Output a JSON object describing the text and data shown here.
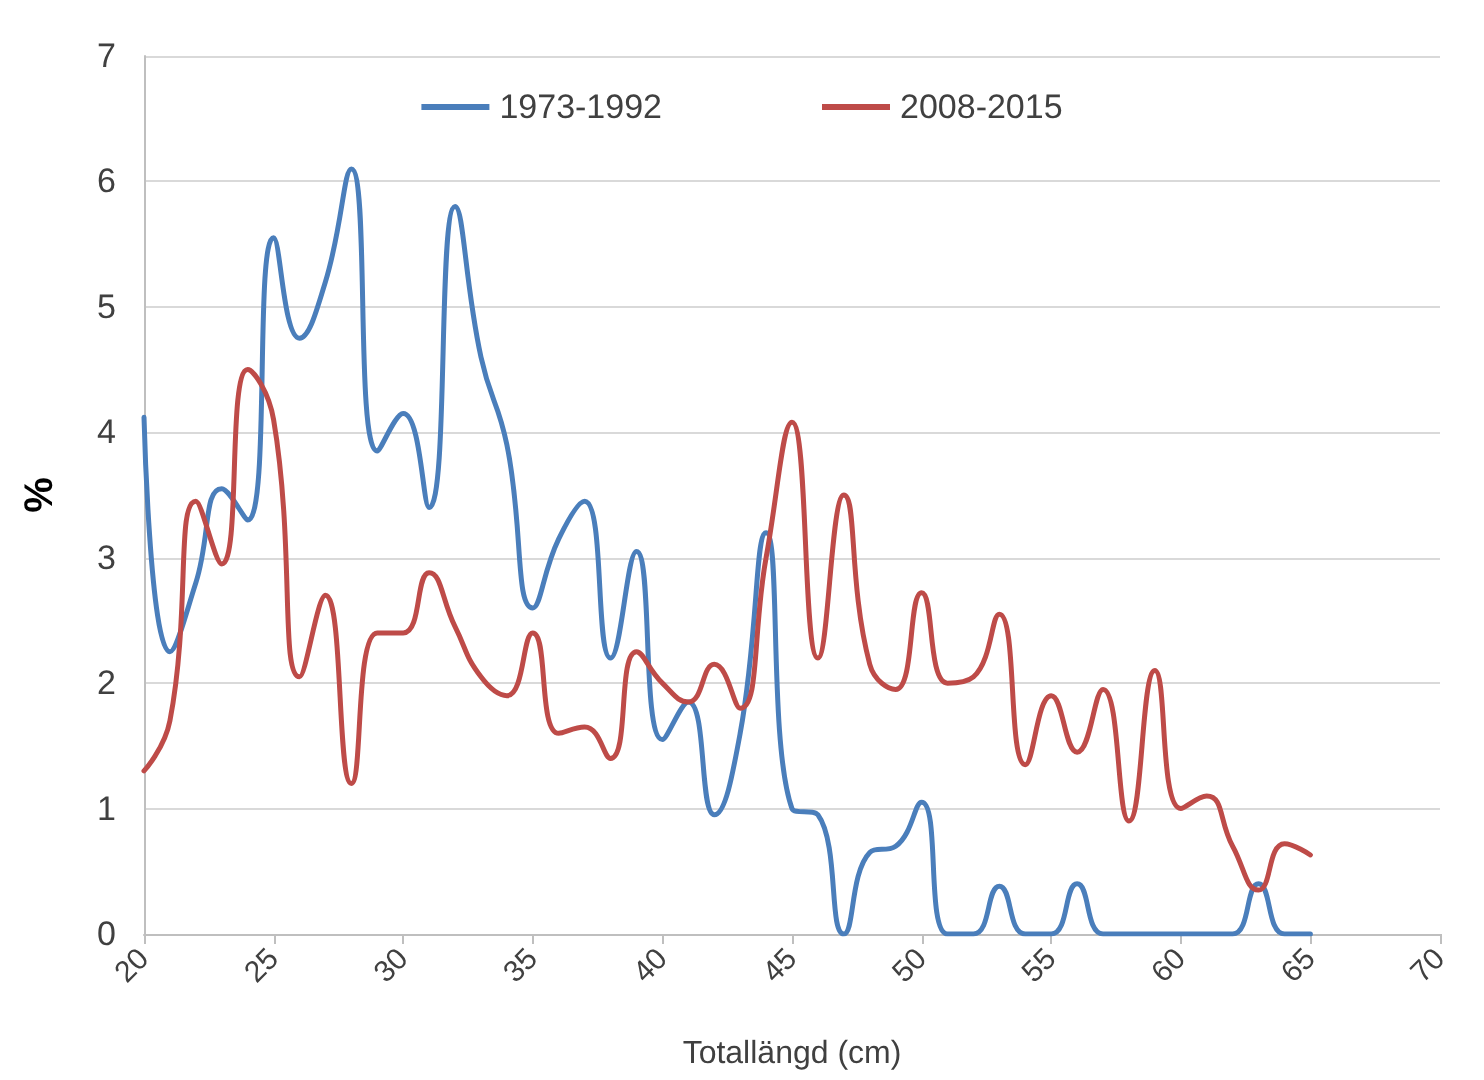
{
  "chart_data": {
    "type": "line",
    "xlabel": "Totallängd (cm)",
    "ylabel": "%",
    "x": [
      20,
      21,
      22,
      23,
      24,
      25,
      26,
      27,
      28,
      29,
      30,
      31,
      32,
      33,
      34,
      35,
      36,
      37,
      38,
      39,
      40,
      41,
      42,
      43,
      44,
      45,
      46,
      47,
      48,
      49,
      50,
      51,
      52,
      53,
      54,
      55,
      56,
      57,
      58,
      59,
      60,
      61,
      62,
      63,
      64,
      65
    ],
    "series": [
      {
        "name": "1973-1992",
        "color": "#4a7ebb",
        "values": [
          4.12,
          2.25,
          2.8,
          3.55,
          3.3,
          5.55,
          4.75,
          5.2,
          6.1,
          3.85,
          4.15,
          3.4,
          5.8,
          4.6,
          3.9,
          2.6,
          3.15,
          3.45,
          2.2,
          3.05,
          1.55,
          1.85,
          0.95,
          1.6,
          3.2,
          1.0,
          0.95,
          0,
          0.65,
          0.7,
          1.05,
          0,
          0,
          0.38,
          0,
          0,
          0.4,
          0,
          0,
          0,
          0,
          0,
          0,
          0.4,
          0,
          0
        ]
      },
      {
        "name": "2008-2015",
        "color": "#be4b48",
        "values": [
          1.3,
          1.7,
          3.45,
          2.95,
          4.5,
          4.1,
          2.05,
          2.7,
          1.2,
          2.4,
          2.4,
          2.88,
          2.45,
          2.05,
          1.9,
          2.4,
          1.6,
          1.65,
          1.4,
          2.25,
          2.0,
          1.85,
          2.15,
          1.8,
          3.0,
          4.08,
          2.2,
          3.5,
          2.15,
          1.95,
          2.72,
          2.0,
          2.05,
          2.55,
          1.35,
          1.9,
          1.45,
          1.95,
          0.9,
          2.1,
          1.0,
          1.1,
          0.7,
          0.35,
          0.72,
          0.63
        ]
      }
    ],
    "xlim": [
      20,
      70
    ],
    "xticks": [
      20,
      25,
      30,
      35,
      40,
      45,
      50,
      55,
      60,
      65,
      70
    ],
    "ylim": [
      0,
      7
    ],
    "yticks": [
      0,
      1,
      2,
      3,
      4,
      5,
      6,
      7
    ],
    "grid": "y",
    "legend": "top",
    "marker": "none",
    "line_style": "solid"
  }
}
